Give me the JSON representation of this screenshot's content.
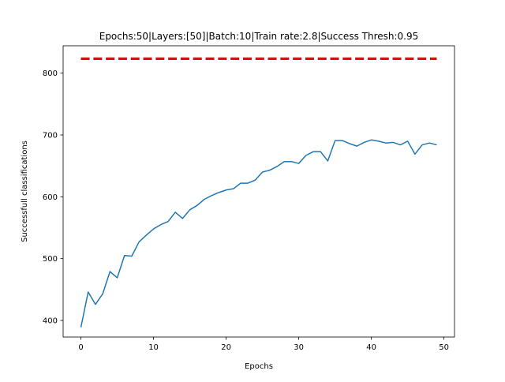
{
  "chart_data": {
    "type": "line",
    "title": "Epochs:50|Layers:[50]|Batch:10|Train rate:2.8|Success Thresh:0.95",
    "xlabel": "Epochs",
    "ylabel": "Successfull classifications",
    "xlim": [
      -2.45,
      51.45
    ],
    "ylim": [
      373.2,
      844.3
    ],
    "xticks": [
      0,
      10,
      20,
      30,
      40,
      50
    ],
    "yticks": [
      400,
      500,
      600,
      700,
      800
    ],
    "grid": false,
    "legend": "none",
    "series": [
      {
        "color": "#1f77b4",
        "style": "solid",
        "x": [
          0,
          1,
          2,
          3,
          4,
          5,
          6,
          7,
          8,
          9,
          10,
          11,
          12,
          13,
          14,
          15,
          16,
          17,
          18,
          19,
          20,
          21,
          22,
          23,
          24,
          25,
          26,
          27,
          28,
          29,
          30,
          31,
          32,
          33,
          34,
          35,
          36,
          37,
          38,
          39,
          40,
          41,
          42,
          43,
          44,
          45,
          46,
          47,
          48,
          49
        ],
        "values": [
          389,
          446,
          426,
          443,
          479,
          469,
          505,
          504,
          527,
          538,
          548,
          555,
          560,
          575,
          565,
          579,
          586,
          596,
          602,
          607,
          611,
          613,
          622,
          622,
          627,
          640,
          643,
          649,
          657,
          657,
          654,
          667,
          673,
          673,
          658,
          691,
          691,
          686,
          682,
          688,
          692,
          690,
          687,
          688,
          684,
          690,
          669,
          684,
          687,
          684
        ]
      },
      {
        "color": "#ff0000",
        "style": "dashed",
        "x": [
          0,
          49
        ],
        "values": [
          823.4,
          823.4
        ]
      }
    ]
  }
}
